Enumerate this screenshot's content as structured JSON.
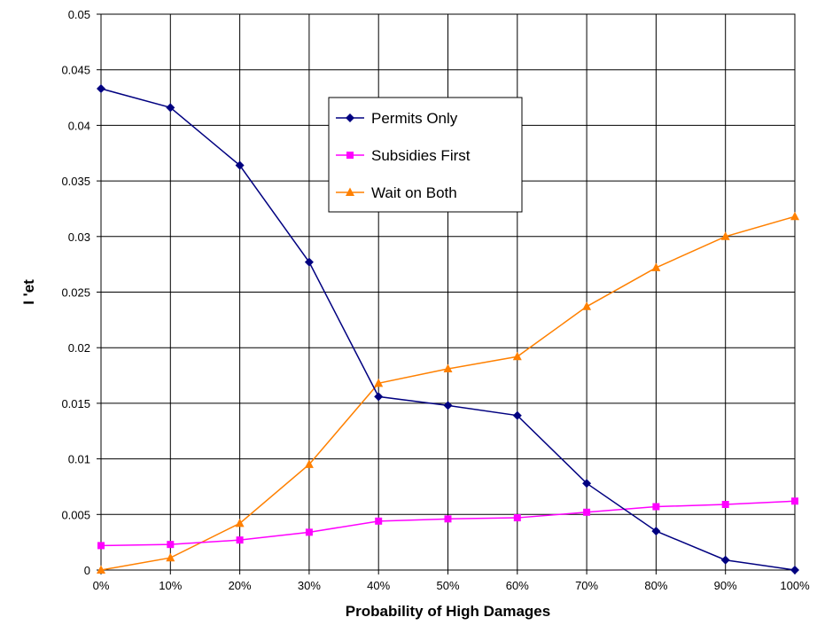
{
  "chart_data": {
    "type": "line",
    "title": "",
    "xlabel": "Probability of High Damages",
    "ylabel": "I 'et",
    "categories": [
      "0%",
      "10%",
      "20%",
      "30%",
      "40%",
      "50%",
      "60%",
      "70%",
      "80%",
      "90%",
      "100%"
    ],
    "ylim": [
      0,
      0.05
    ],
    "yticks": [
      0,
      0.005,
      0.01,
      0.015,
      0.02,
      0.025,
      0.03,
      0.035,
      0.04,
      0.045,
      0.05
    ],
    "ytick_labels": [
      "0",
      "0.005",
      "0.01",
      "0.015",
      "0.02",
      "0.025",
      "0.03",
      "0.035",
      "0.04",
      "0.045",
      "0.05"
    ],
    "grid": true,
    "legend_position": "upper-center",
    "series": [
      {
        "name": "Permits Only",
        "color": "#000080",
        "marker": "diamond",
        "values": [
          0.0433,
          0.0416,
          0.0364,
          0.0277,
          0.0156,
          0.0148,
          0.0139,
          0.0078,
          0.0035,
          0.0009,
          0.0
        ]
      },
      {
        "name": "Subsidies First",
        "color": "#FF00FF",
        "marker": "square",
        "values": [
          0.0022,
          0.0023,
          0.0027,
          0.0034,
          0.0044,
          0.0046,
          0.0047,
          0.0052,
          0.0057,
          0.0059,
          0.0062
        ]
      },
      {
        "name": "Wait on Both",
        "color": "#FF8000",
        "marker": "triangle",
        "values": [
          0.0,
          0.0011,
          0.0042,
          0.0095,
          0.0168,
          0.0181,
          0.0192,
          0.0237,
          0.0272,
          0.03,
          0.0318
        ]
      }
    ]
  }
}
